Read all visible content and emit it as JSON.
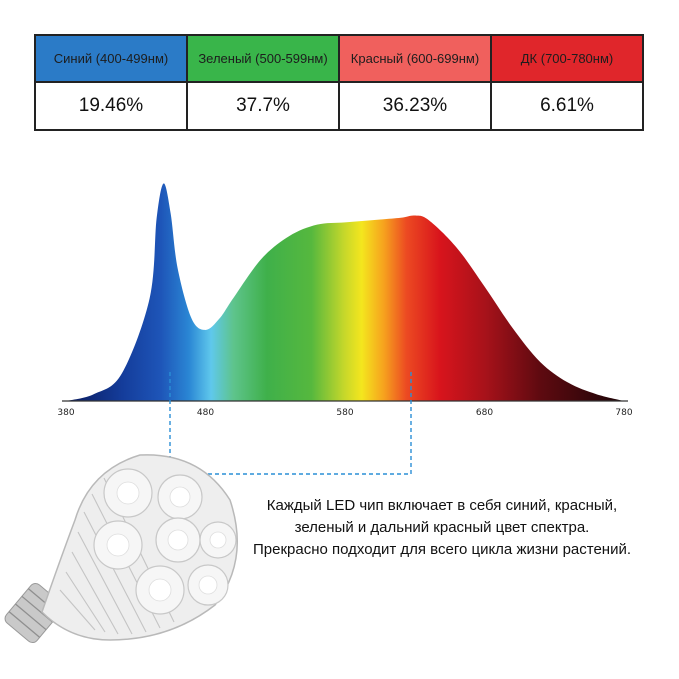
{
  "chart_data": [
    {
      "type": "table",
      "columns": [
        "Синий (400-499нм)",
        "Зеленый (500-599нм)",
        "Красный (600-699нм)",
        "ДК (700-780нм)"
      ],
      "values": [
        "19.46%",
        "37.7%",
        "36.23%",
        "6.61%"
      ],
      "colors": [
        "#2b7bc7",
        "#39b54a",
        "#f0605d",
        "#e0262b"
      ]
    },
    {
      "type": "area",
      "x_ticks": [
        "380",
        "480",
        "580",
        "680",
        "780"
      ],
      "xlim": [
        380,
        780
      ],
      "ylim": [
        0,
        1
      ],
      "grid": false,
      "x": [
        380,
        400,
        420,
        440,
        445,
        450,
        455,
        460,
        470,
        480,
        490,
        500,
        520,
        540,
        560,
        580,
        600,
        620,
        630,
        640,
        660,
        680,
        700,
        720,
        740,
        760,
        780
      ],
      "y": [
        0.0,
        0.03,
        0.12,
        0.45,
        0.8,
        0.95,
        0.82,
        0.58,
        0.36,
        0.31,
        0.36,
        0.45,
        0.62,
        0.72,
        0.77,
        0.78,
        0.79,
        0.8,
        0.81,
        0.79,
        0.67,
        0.5,
        0.32,
        0.17,
        0.08,
        0.03,
        0.0
      ]
    }
  ],
  "caption": [
    "Каждый LED чип включает в себя синий, красный,",
    "зеленый и дальний красный цвет спектра.",
    "Прекрасно подходит для всего цикла жизни растений."
  ]
}
